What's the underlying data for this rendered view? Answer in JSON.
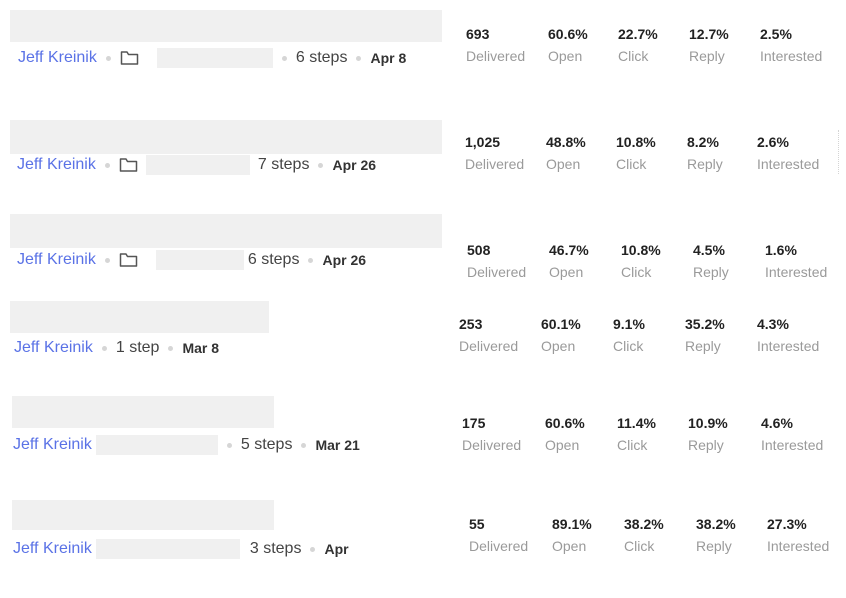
{
  "rows": [
    {
      "owner": "Jeff Kreinik",
      "steps": "6 steps",
      "date": "Apr 8",
      "stats": [
        {
          "value": "693",
          "label": "Delivered"
        },
        {
          "value": "60.6%",
          "label": "Open"
        },
        {
          "value": "22.7%",
          "label": "Click"
        },
        {
          "value": "12.7%",
          "label": "Reply"
        },
        {
          "value": "2.5%",
          "label": "Interested"
        }
      ]
    },
    {
      "owner": "Jeff Kreinik",
      "steps": "7 steps",
      "date": "Apr 26",
      "stats": [
        {
          "value": "1,025",
          "label": "Delivered"
        },
        {
          "value": "48.8%",
          "label": "Open"
        },
        {
          "value": "10.8%",
          "label": "Click"
        },
        {
          "value": "8.2%",
          "label": "Reply"
        },
        {
          "value": "2.6%",
          "label": "Interested"
        }
      ]
    },
    {
      "owner": "Jeff Kreinik",
      "steps": "6 steps",
      "date": "Apr 26",
      "stats": [
        {
          "value": "508",
          "label": "Delivered"
        },
        {
          "value": "46.7%",
          "label": "Open"
        },
        {
          "value": "10.8%",
          "label": "Click"
        },
        {
          "value": "4.5%",
          "label": "Reply"
        },
        {
          "value": "1.6%",
          "label": "Interested"
        }
      ]
    },
    {
      "owner": "Jeff Kreinik",
      "steps": "1 step",
      "date": "Mar 8",
      "stats": [
        {
          "value": "253",
          "label": "Delivered"
        },
        {
          "value": "60.1%",
          "label": "Open"
        },
        {
          "value": "9.1%",
          "label": "Click"
        },
        {
          "value": "35.2%",
          "label": "Reply"
        },
        {
          "value": "4.3%",
          "label": "Interested"
        }
      ]
    },
    {
      "owner": "Jeff Kreinik",
      "steps": "5 steps",
      "date": "Mar 21",
      "stats": [
        {
          "value": "175",
          "label": "Delivered"
        },
        {
          "value": "60.6%",
          "label": "Open"
        },
        {
          "value": "11.4%",
          "label": "Click"
        },
        {
          "value": "10.9%",
          "label": "Reply"
        },
        {
          "value": "4.6%",
          "label": "Interested"
        }
      ]
    },
    {
      "owner": "Jeff Kreinik",
      "steps": "3 steps",
      "date": "Apr",
      "stats": [
        {
          "value": "55",
          "label": "Delivered"
        },
        {
          "value": "89.1%",
          "label": "Open"
        },
        {
          "value": "38.2%",
          "label": "Click"
        },
        {
          "value": "38.2%",
          "label": "Reply"
        },
        {
          "value": "27.3%",
          "label": "Interested"
        }
      ]
    }
  ]
}
